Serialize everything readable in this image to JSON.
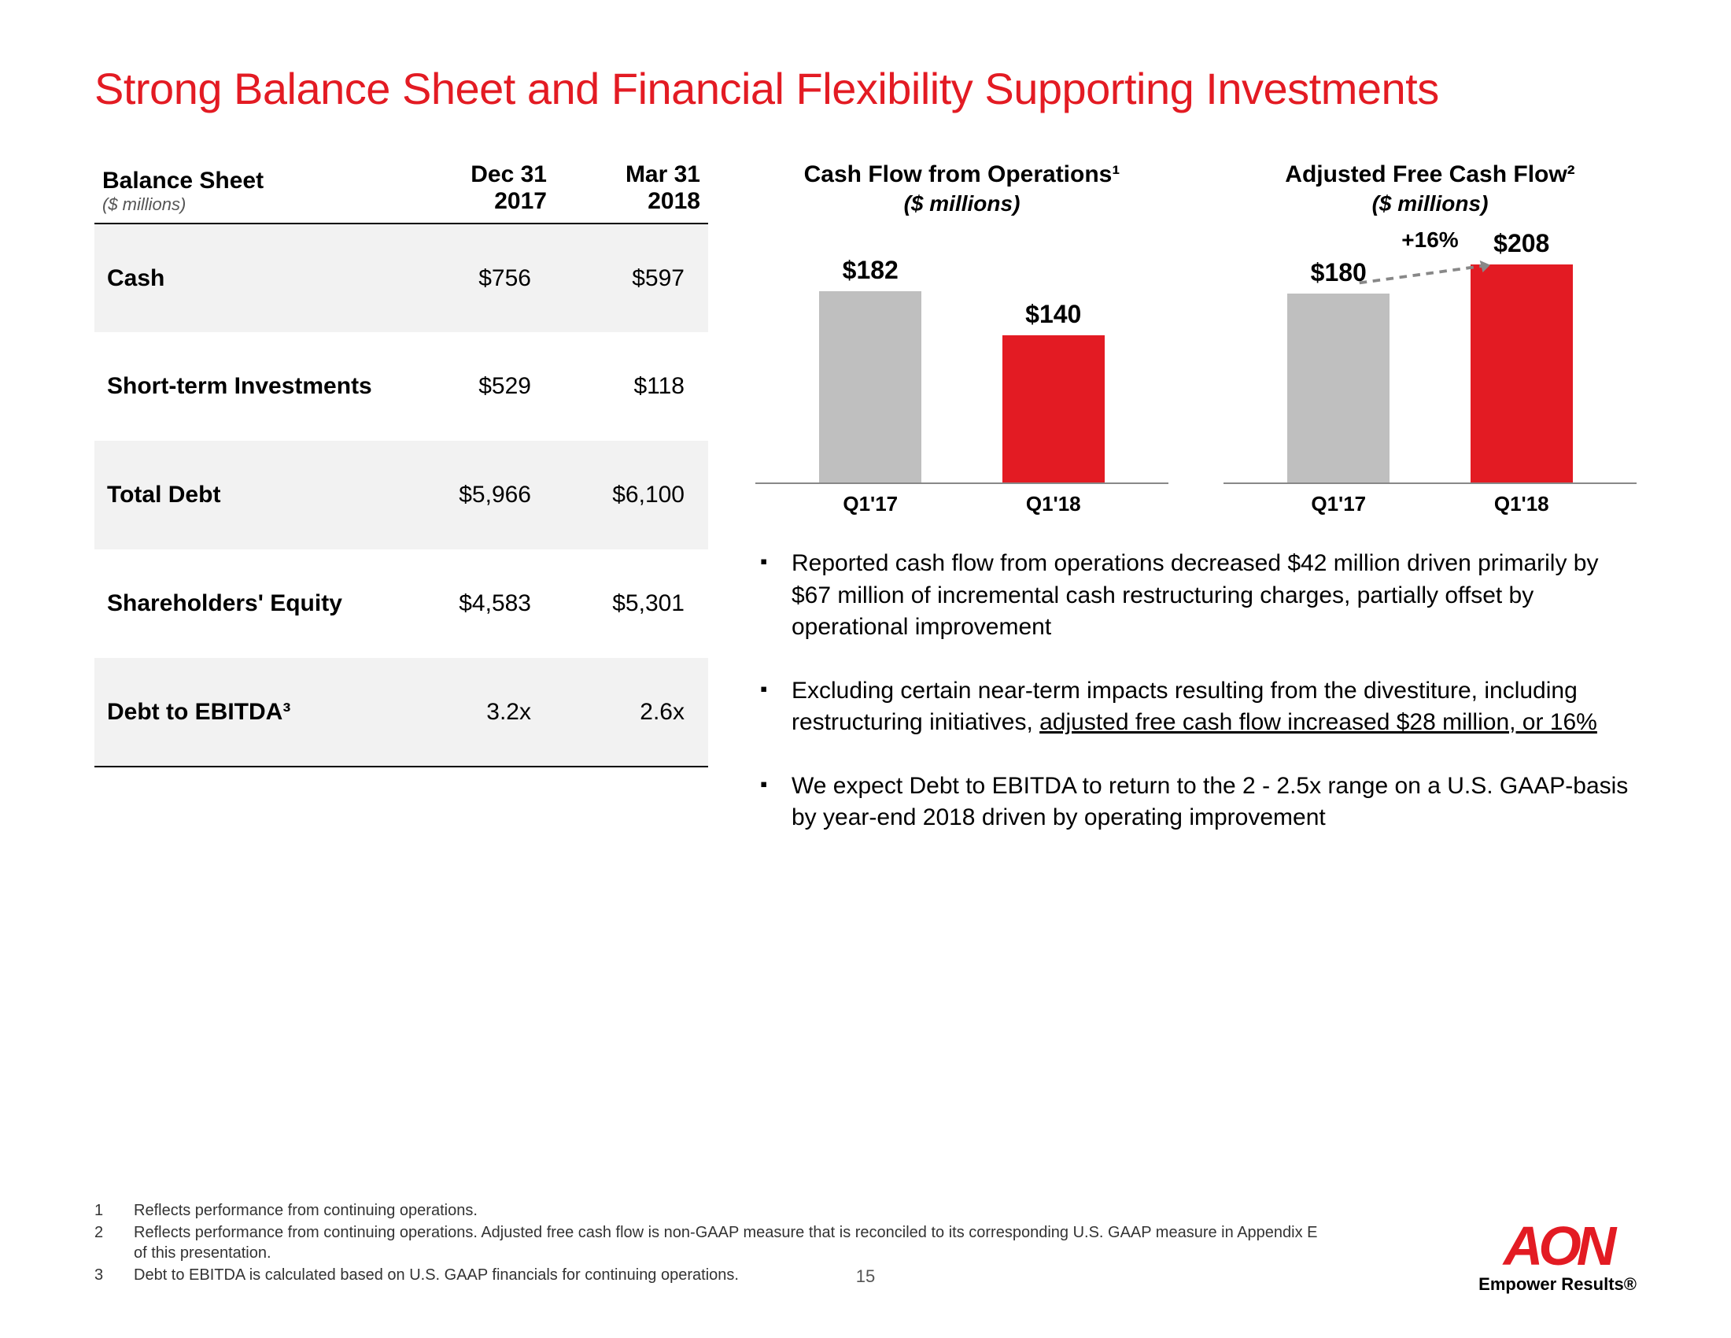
{
  "title": "Strong Balance Sheet and Financial Flexibility Supporting Investments",
  "colors": {
    "brand_red": "#e31b23",
    "bar_gray": "#bfbfbf",
    "row_alt_bg": "#f2f2f2",
    "axis": "#888888",
    "text": "#000000"
  },
  "table": {
    "header_label": "Balance Sheet",
    "header_sub": "($ millions)",
    "col1_line1": "Dec 31",
    "col1_line2": "2017",
    "col2_line1": "Mar 31",
    "col2_line2": "2018",
    "rows": [
      {
        "label": "Cash",
        "v1": "$756",
        "v2": "$597"
      },
      {
        "label": "Short-term Investments",
        "v1": "$529",
        "v2": "$118"
      },
      {
        "label": "Total Debt",
        "v1": "$5,966",
        "v2": "$6,100"
      },
      {
        "label": "Shareholders' Equity",
        "v1": "$4,583",
        "v2": "$5,301"
      },
      {
        "label": "Debt to EBITDA³",
        "v1": "3.2x",
        "v2": "2.6x"
      }
    ]
  },
  "chart1": {
    "title": "Cash Flow from Operations¹",
    "subtitle": "($ millions)",
    "type": "bar",
    "ymax": 210,
    "bars": [
      {
        "label": "$182",
        "cat": "Q1'17",
        "value": 182,
        "color": "gray"
      },
      {
        "label": "$140",
        "cat": "Q1'18",
        "value": 140,
        "color": "red"
      }
    ]
  },
  "chart2": {
    "title": "Adjusted Free Cash Flow²",
    "subtitle": "($ millions)",
    "type": "bar",
    "ymax": 210,
    "growth": "+16%",
    "bars": [
      {
        "label": "$180",
        "cat": "Q1'17",
        "value": 180,
        "color": "gray"
      },
      {
        "label": "$208",
        "cat": "Q1'18",
        "value": 208,
        "color": "red"
      }
    ]
  },
  "bullets": [
    {
      "text": "Reported cash flow from operations decreased $42 million driven primarily by $67 million of incremental cash restructuring charges, partially offset by operational improvement"
    },
    {
      "pre": "Excluding certain near-term impacts resulting from the divestiture, including restructuring initiatives, ",
      "u": "adjusted free cash flow increased $28 million, or 16%"
    },
    {
      "text": "We expect Debt to EBITDA to return to the 2 - 2.5x range on a U.S. GAAP-basis by year-end 2018 driven by operating improvement"
    }
  ],
  "footnotes": [
    {
      "n": "1",
      "t": "Reflects performance from continuing operations."
    },
    {
      "n": "2",
      "t": "Reflects performance from continuing operations. Adjusted free cash flow is non-GAAP measure that is reconciled to its corresponding U.S. GAAP measure in Appendix E of this presentation."
    },
    {
      "n": "3",
      "t": "Debt to EBITDA is calculated based on U.S. GAAP financials for continuing operations."
    }
  ],
  "page_number": "15",
  "logo": {
    "mark": "AON",
    "tagline": "Empower Results®"
  }
}
